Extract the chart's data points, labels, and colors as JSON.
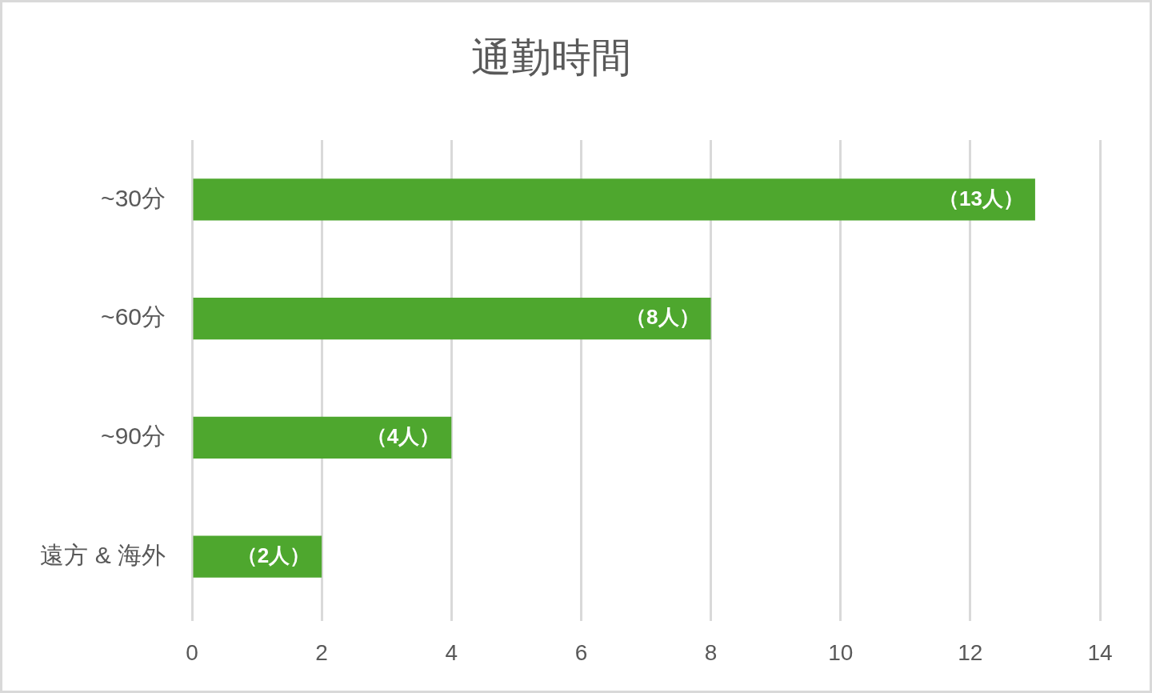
{
  "chart_data": {
    "type": "bar",
    "orientation": "horizontal",
    "title": "通勤時間",
    "categories": [
      "~30分",
      "~60分",
      "~90分",
      "遠方 & 海外"
    ],
    "values": [
      13,
      8,
      4,
      2
    ],
    "value_labels": [
      "（13人）",
      "（8人）",
      "（4人）",
      "（2人）"
    ],
    "color": "#4ea72e",
    "xlim": [
      0,
      14
    ],
    "xticks": [
      0,
      2,
      4,
      6,
      8,
      10,
      12,
      14
    ],
    "grid": "x"
  }
}
